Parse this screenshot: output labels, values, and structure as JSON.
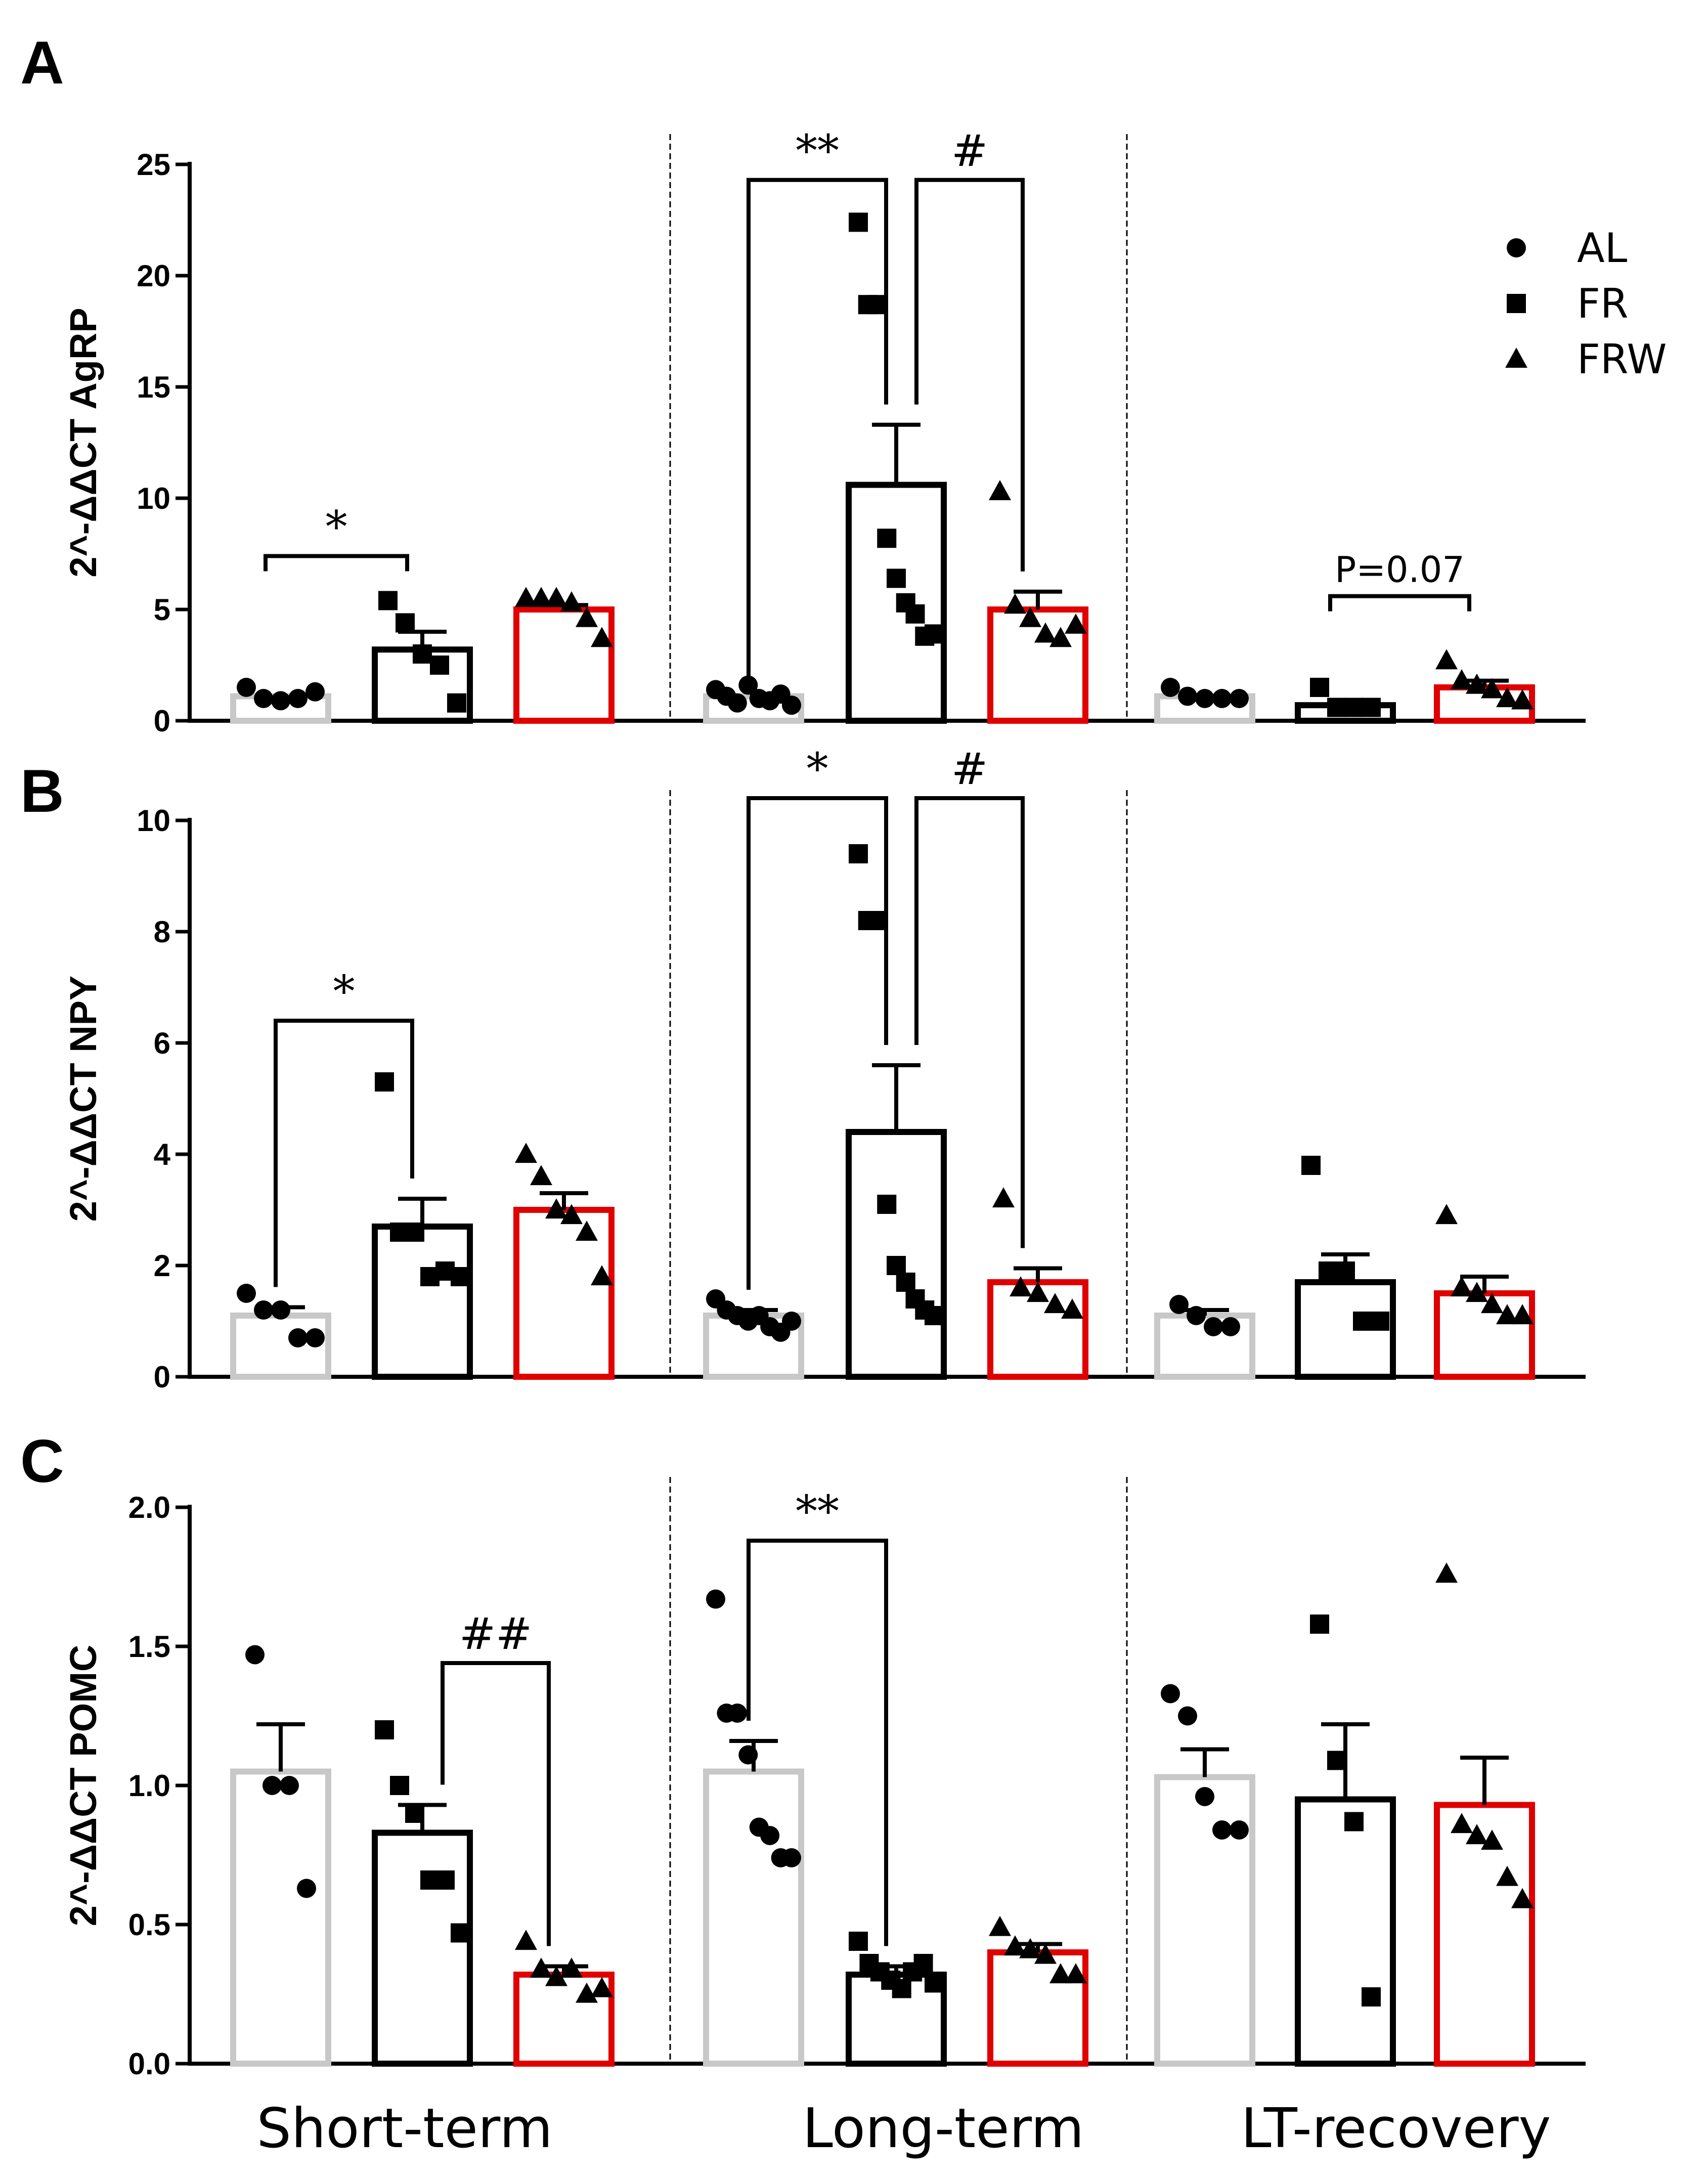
{
  "chart_data": [
    {
      "type": "bar",
      "panel": "A",
      "ylabel": "2^-ΔΔCT AgRP",
      "ylim": [
        0,
        25
      ],
      "yticks": [
        "0",
        "5",
        "10",
        "15",
        "20",
        "25"
      ],
      "ytick_values": [
        0,
        5,
        10,
        15,
        20,
        25
      ],
      "groups": [
        "Short-term",
        "Long-term",
        "LT-recovery"
      ],
      "series": [
        {
          "name": "AL",
          "color": "#c8c8c8",
          "marker": "circle",
          "values": [
            1.1,
            1.1,
            1.1
          ],
          "sem": [
            0,
            0,
            0
          ],
          "points": [
            [
              1.5,
              1.0,
              0.9,
              1.0,
              1.3
            ],
            [
              1.4,
              1.1,
              0.8,
              1.6,
              1.0,
              0.9,
              1.2,
              0.7
            ],
            [
              1.5,
              1.1,
              1.0,
              1.0,
              1.0
            ]
          ]
        },
        {
          "name": "FR",
          "color": "#000000",
          "marker": "square",
          "values": [
            3.2,
            10.6,
            0.7
          ],
          "sem": [
            0.8,
            2.7,
            0
          ],
          "points": [
            [
              5.4,
              4.4,
              3.0,
              2.5,
              0.8
            ],
            [
              22.4,
              18.7,
              18.7,
              8.2,
              6.4,
              5.3,
              4.8,
              3.8,
              3.9
            ],
            [
              1.5,
              0.6,
              0.6,
              0.6
            ]
          ]
        },
        {
          "name": "FRW",
          "color": "#e00000",
          "marker": "triangle",
          "values": [
            5.0,
            5.0,
            1.5
          ],
          "sem": [
            0.2,
            0.8,
            0.3
          ],
          "points": [
            [
              5.5,
              5.5,
              5.5,
              5.3,
              4.6,
              3.7
            ],
            [
              10.3,
              5.2,
              4.6,
              3.9,
              3.7,
              4.3
            ],
            [
              2.7,
              1.8,
              1.6,
              1.4,
              1.0,
              0.9
            ]
          ]
        }
      ],
      "annotations": [
        {
          "label": "*",
          "type": "flat",
          "from": [
            0,
            0
          ],
          "to": [
            0,
            1
          ],
          "y": 7.4
        },
        {
          "label": "**",
          "type": "pair",
          "from": [
            1,
            0
          ],
          "to": [
            1,
            1
          ],
          "y": 24.3
        },
        {
          "label": "#",
          "type": "pair",
          "from": [
            1,
            1
          ],
          "to": [
            1,
            2
          ],
          "y": 24.3
        },
        {
          "label": "P=0.07",
          "type": "flat",
          "from": [
            2,
            1
          ],
          "to": [
            2,
            2
          ],
          "y": 5.6
        }
      ]
    },
    {
      "type": "bar",
      "panel": "B",
      "ylabel": "2^-ΔΔCT NPY",
      "ylim": [
        0,
        10
      ],
      "yticks": [
        "0",
        "2",
        "4",
        "6",
        "8",
        "10"
      ],
      "ytick_values": [
        0,
        2,
        4,
        6,
        8,
        10
      ],
      "groups": [
        "Short-term",
        "Long-term",
        "LT-recovery"
      ],
      "series": [
        {
          "name": "AL",
          "color": "#c8c8c8",
          "marker": "circle",
          "values": [
            1.1,
            1.1,
            1.1
          ],
          "sem": [
            0.15,
            0.1,
            0.1
          ],
          "points": [
            [
              1.5,
              1.2,
              1.2,
              0.7,
              0.7
            ],
            [
              1.4,
              1.2,
              1.1,
              1.0,
              1.1,
              0.9,
              0.8,
              1.0
            ],
            [
              1.3,
              1.1,
              0.9,
              0.9
            ]
          ]
        },
        {
          "name": "FR",
          "color": "#000000",
          "marker": "square",
          "values": [
            2.7,
            4.4,
            1.7
          ],
          "sem": [
            0.5,
            1.2,
            0.5
          ],
          "points": [
            [
              5.3,
              2.6,
              2.6,
              1.8,
              1.9,
              1.8
            ],
            [
              9.4,
              8.2,
              8.2,
              3.1,
              2.0,
              1.7,
              1.4,
              1.2,
              1.1
            ],
            [
              3.8,
              1.9,
              1.9,
              1.0,
              1.0
            ]
          ]
        },
        {
          "name": "FRW",
          "color": "#e00000",
          "marker": "triangle",
          "values": [
            3.0,
            1.7,
            1.5
          ],
          "sem": [
            0.3,
            0.25,
            0.3
          ],
          "points": [
            [
              4.0,
              3.6,
              3.0,
              2.9,
              2.6,
              1.8
            ],
            [
              3.2,
              1.6,
              1.5,
              1.3,
              1.2
            ],
            [
              2.9,
              1.6,
              1.5,
              1.3,
              1.1,
              1.1
            ]
          ]
        }
      ],
      "annotations": [
        {
          "label": "*",
          "type": "pair",
          "from": [
            0,
            0
          ],
          "to": [
            0,
            1
          ],
          "y": 6.4
        },
        {
          "label": "*",
          "type": "pair",
          "from": [
            1,
            0
          ],
          "to": [
            1,
            1
          ],
          "y": 10.4
        },
        {
          "label": "#",
          "type": "pair",
          "from": [
            1,
            1
          ],
          "to": [
            1,
            2
          ],
          "y": 10.4
        }
      ]
    },
    {
      "type": "bar",
      "panel": "C",
      "ylabel": "2^-ΔΔCT POMC",
      "ylim": [
        0,
        2.0
      ],
      "yticks": [
        "0.0",
        "0.5",
        "1.0",
        "1.5",
        "2.0"
      ],
      "ytick_values": [
        0,
        0.5,
        1.0,
        1.5,
        2.0
      ],
      "groups": [
        "Short-term",
        "Long-term",
        "LT-recovery"
      ],
      "series": [
        {
          "name": "AL",
          "color": "#c8c8c8",
          "marker": "circle",
          "values": [
            1.05,
            1.05,
            1.03
          ],
          "sem": [
            0.17,
            0.11,
            0.1
          ],
          "points": [
            [
              1.47,
              1.0,
              1.0,
              0.63
            ],
            [
              1.67,
              1.26,
              1.26,
              1.11,
              0.85,
              0.82,
              0.74,
              0.74
            ],
            [
              1.33,
              1.25,
              0.96,
              0.84,
              0.84
            ]
          ]
        },
        {
          "name": "FR",
          "color": "#000000",
          "marker": "square",
          "values": [
            0.83,
            0.32,
            0.95
          ],
          "sem": [
            0.1,
            0.03,
            0.27
          ],
          "points": [
            [
              1.2,
              1.0,
              0.9,
              0.66,
              0.66,
              0.47
            ],
            [
              0.44,
              0.36,
              0.33,
              0.3,
              0.27,
              0.33,
              0.36,
              0.29
            ],
            [
              1.58,
              1.09,
              0.87,
              0.24
            ]
          ]
        },
        {
          "name": "FRW",
          "color": "#e00000",
          "marker": "triangle",
          "values": [
            0.32,
            0.4,
            0.93
          ],
          "sem": [
            0.03,
            0.03,
            0.17
          ],
          "points": [
            [
              0.44,
              0.34,
              0.31,
              0.34,
              0.25,
              0.27
            ],
            [
              0.49,
              0.42,
              0.41,
              0.39,
              0.32,
              0.32
            ],
            [
              1.76,
              0.86,
              0.82,
              0.8,
              0.67,
              0.59
            ]
          ]
        }
      ],
      "annotations": [
        {
          "label": "##",
          "type": "pair",
          "from": [
            0,
            1
          ],
          "to": [
            0,
            2
          ],
          "y": 1.44
        },
        {
          "label": "**",
          "type": "pair",
          "from": [
            1,
            0
          ],
          "to": [
            1,
            1
          ],
          "y": 1.88
        }
      ]
    }
  ],
  "legend": [
    {
      "label": "AL",
      "marker": "circle"
    },
    {
      "label": "FR",
      "marker": "square"
    },
    {
      "label": "FRW",
      "marker": "triangle"
    }
  ],
  "x_group_labels": [
    "Short-term",
    "Long-term",
    "LT-recovery"
  ]
}
